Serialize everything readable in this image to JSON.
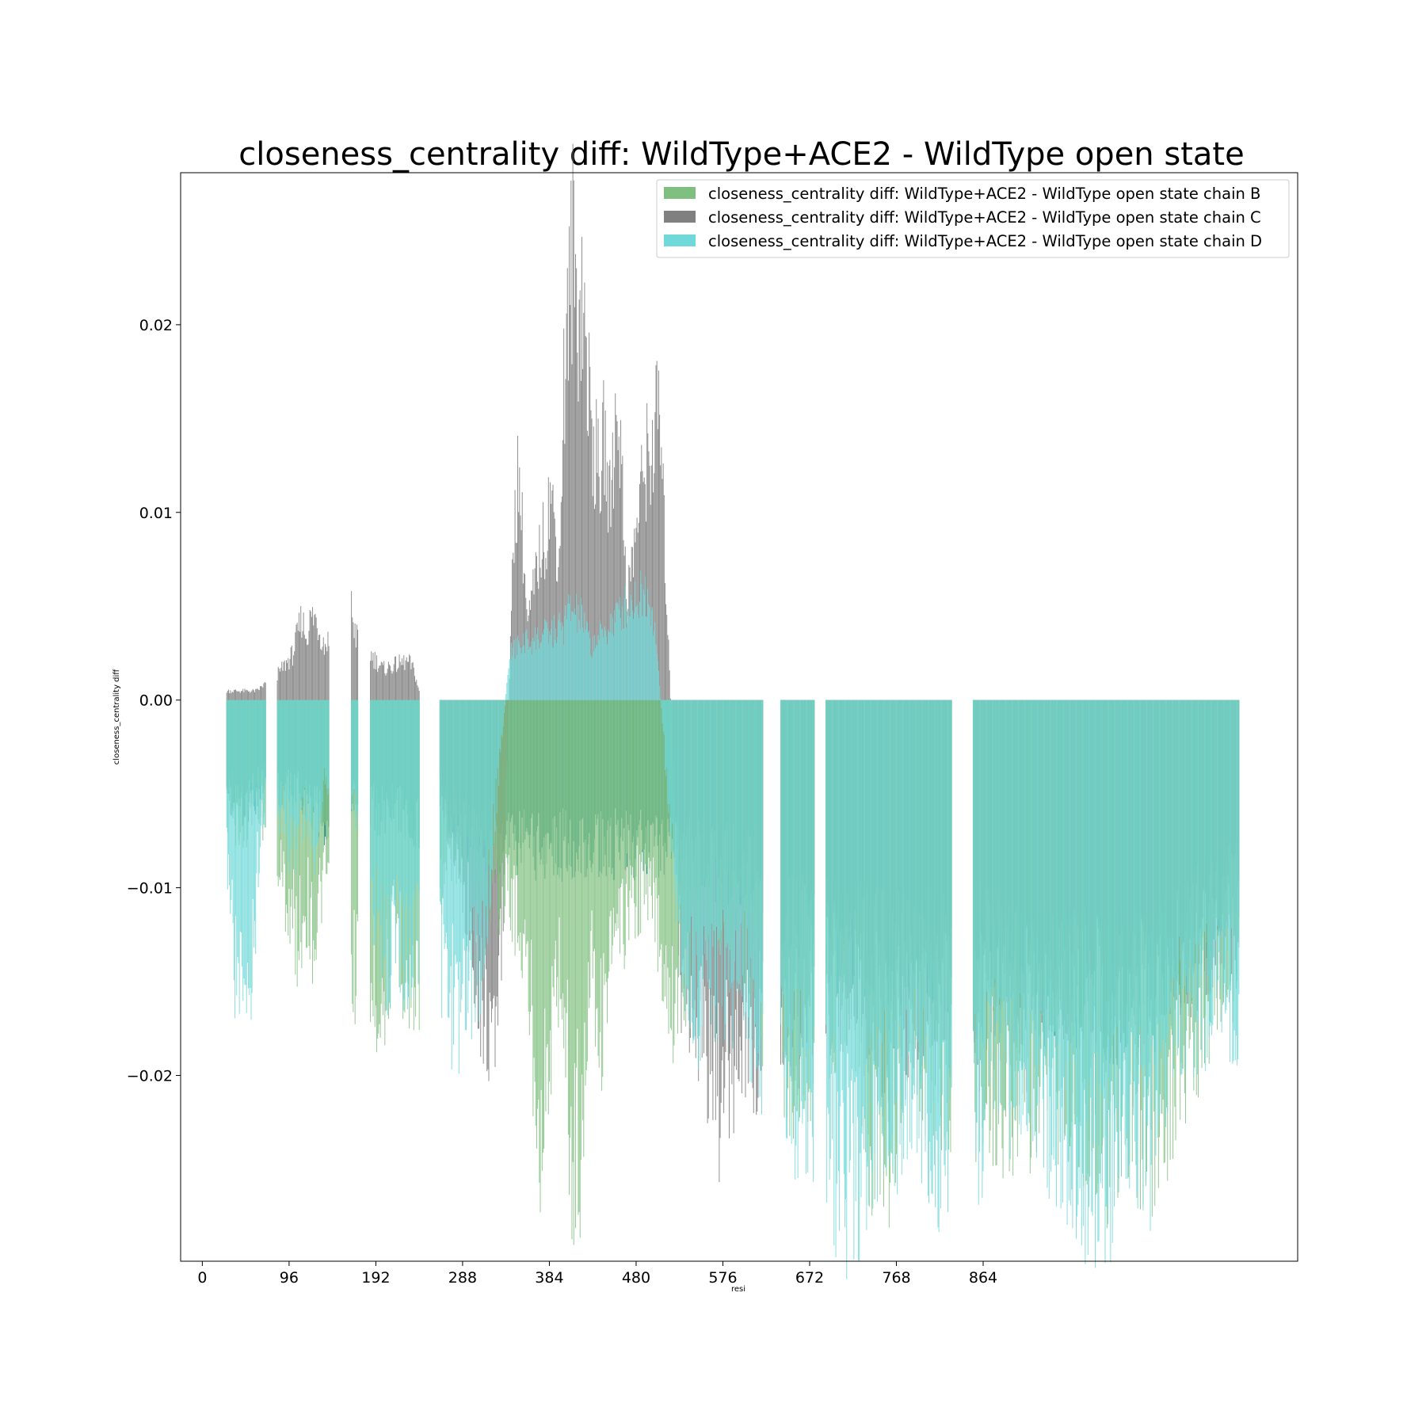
{
  "chart_data": {
    "type": "bar",
    "title": "closeness_centrality diff: WildType+ACE2 - WildType open state",
    "xlabel": "resi",
    "ylabel": "closeness_centrality diff",
    "xlim": [
      -24,
      1212
    ],
    "ylim": [
      -0.0299,
      0.0281
    ],
    "x_ticks": [
      0,
      96,
      192,
      288,
      384,
      480,
      576,
      672,
      768,
      864
    ],
    "x_tick_labels": [
      "0",
      "96",
      "192",
      "288",
      "384",
      "480",
      "576",
      "672",
      "768",
      "864"
    ],
    "y_ticks": [
      -0.02,
      -0.01,
      0.0,
      0.01,
      0.02
    ],
    "y_tick_labels": [
      "−0.02",
      "−0.01",
      "0.00",
      "0.01",
      "0.02"
    ],
    "legend_position": "upper-right",
    "residue_ranges": [
      [
        27,
        70
      ],
      [
        83,
        140
      ],
      [
        165,
        172
      ],
      [
        186,
        240
      ],
      [
        263,
        340
      ],
      [
        340,
        520
      ],
      [
        520,
        620
      ],
      [
        640,
        677
      ],
      [
        690,
        829
      ],
      [
        853,
        1147
      ]
    ],
    "series": [
      {
        "name": "closeness_centrality diff: WildType+ACE2 - WildType open state chain B",
        "color": "#7fbf7f",
        "x": [
          30,
          45,
          60,
          90,
          105,
          115,
          125,
          135,
          170,
          200,
          215,
          230,
          280,
          300,
          320,
          345,
          360,
          375,
          385,
          395,
          405,
          410,
          415,
          420,
          425,
          430,
          440,
          450,
          460,
          470,
          490,
          500,
          510,
          520,
          560,
          600,
          650,
          720,
          740,
          750,
          760,
          780,
          900,
          950,
          1000,
          1050,
          1100,
          1130
        ],
        "values": [
          -0.006,
          -0.007,
          -0.005,
          -0.01,
          -0.013,
          -0.011,
          -0.013,
          -0.009,
          -0.0145,
          -0.0162,
          -0.012,
          -0.0163,
          -0.008,
          -0.009,
          -0.01,
          -0.011,
          -0.015,
          -0.0232,
          -0.019,
          -0.014,
          -0.0205,
          -0.0272,
          -0.022,
          -0.0265,
          -0.018,
          -0.012,
          -0.0185,
          -0.014,
          -0.0135,
          -0.011,
          -0.0103,
          -0.011,
          -0.014,
          -0.0162,
          -0.011,
          -0.013,
          -0.0205,
          -0.015,
          -0.0235,
          -0.0217,
          -0.0238,
          -0.019,
          -0.0215,
          -0.0205,
          -0.0232,
          -0.023,
          -0.018,
          -0.0145
        ]
      },
      {
        "name": "closeness_centrality diff: WildType+ACE2 - WildType open state chain C",
        "color": "#808080",
        "x": [
          60,
          85,
          100,
          110,
          115,
          120,
          125,
          130,
          135,
          165,
          170,
          200,
          225,
          230,
          235,
          280,
          300,
          310,
          320,
          325,
          330,
          345,
          350,
          360,
          375,
          380,
          385,
          395,
          400,
          410,
          415,
          420,
          425,
          430,
          440,
          445,
          450,
          460,
          470,
          490,
          495,
          500,
          505,
          510,
          530,
          545,
          560,
          570,
          580,
          600,
          660,
          720,
          760,
          850,
          1140
        ],
        "values": [
          0.0005,
          0.0015,
          0.0025,
          0.0045,
          0.0035,
          0.0045,
          0.0045,
          0.0038,
          0.003,
          0.005,
          0.0035,
          0.0017,
          0.0021,
          0.002,
          0.0015,
          -0.008,
          -0.013,
          -0.0165,
          -0.0175,
          -0.018,
          -0.015,
          0.0095,
          0.0128,
          0.004,
          0.0085,
          0.009,
          0.0115,
          0.0075,
          0.017,
          0.025,
          0.0215,
          0.0225,
          0.019,
          0.015,
          0.012,
          0.0145,
          0.0105,
          0.0168,
          0.0055,
          0.013,
          0.0135,
          0.014,
          0.0165,
          0.0105,
          -0.0155,
          -0.017,
          -0.019,
          -0.0225,
          -0.0195,
          -0.0185,
          -0.017,
          -0.015,
          -0.018,
          -0.016,
          -0.0135
        ]
      },
      {
        "name": "closeness_centrality diff: WildType+ACE2 - WildType open state chain D",
        "color": "#6fd8d8",
        "x": [
          30,
          35,
          40,
          45,
          50,
          55,
          65,
          90,
          100,
          110,
          125,
          135,
          170,
          195,
          205,
          215,
          225,
          235,
          265,
          280,
          290,
          300,
          310,
          340,
          350,
          400,
          405,
          420,
          430,
          450,
          465,
          490,
          495,
          500,
          530,
          550,
          570,
          600,
          620,
          640,
          660,
          700,
          720,
          740,
          760,
          790,
          820,
          855,
          880,
          920,
          950,
          980,
          1000,
          1020,
          1050,
          1080,
          1100,
          1140
        ],
        "values": [
          -0.009,
          -0.014,
          -0.0155,
          -0.0173,
          -0.016,
          -0.0145,
          -0.006,
          -0.006,
          -0.0085,
          -0.006,
          -0.008,
          -0.004,
          -0.006,
          -0.0125,
          -0.0145,
          -0.012,
          -0.014,
          -0.0125,
          -0.014,
          -0.017,
          -0.016,
          -0.015,
          -0.014,
          0.0025,
          0.003,
          0.004,
          0.005,
          0.0045,
          0.003,
          0.004,
          0.005,
          0.006,
          0.0055,
          0.0045,
          -0.0145,
          -0.0165,
          -0.015,
          -0.0155,
          -0.0215,
          -0.021,
          -0.0212,
          -0.0245,
          -0.0265,
          -0.024,
          -0.0225,
          -0.0205,
          -0.024,
          -0.0228,
          -0.02,
          -0.021,
          -0.0252,
          -0.0248,
          -0.0255,
          -0.0225,
          -0.0235,
          -0.0165,
          -0.0165,
          -0.016
        ]
      },
      {
        "name": "",
        "color": "#1f8b7f",
        "x": [
          30,
          50,
          70,
          85,
          110,
          140,
          165,
          190,
          220,
          240,
          265,
          290,
          320,
          520,
          560,
          600,
          620,
          640,
          660,
          680,
          690,
          720,
          760,
          800,
          829,
          853,
          900,
          950,
          1000,
          1050,
          1100,
          1147
        ],
        "values": [
          -0.005,
          -0.006,
          -0.004,
          -0.005,
          -0.005,
          -0.007,
          -0.005,
          -0.006,
          -0.006,
          -0.007,
          -0.006,
          -0.007,
          -0.008,
          -0.008,
          -0.009,
          -0.009,
          -0.01,
          -0.012,
          -0.013,
          -0.012,
          -0.013,
          -0.013,
          -0.014,
          -0.013,
          -0.014,
          -0.013,
          -0.014,
          -0.015,
          -0.016,
          -0.016,
          -0.012,
          -0.01
        ]
      }
    ]
  }
}
